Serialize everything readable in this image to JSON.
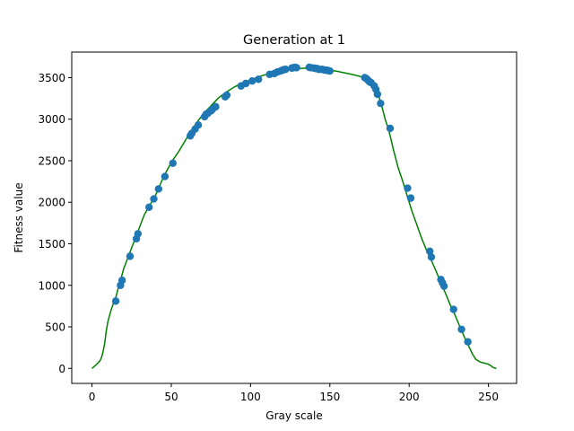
{
  "chart_data": {
    "type": "scatter",
    "title": "Generation at 1",
    "xlabel": "Gray scale",
    "ylabel": "Fitness value",
    "xlim": [
      -12.75,
      267.75
    ],
    "ylim": [
      -181,
      3808
    ],
    "xticks": [
      0,
      50,
      100,
      150,
      200,
      250
    ],
    "yticks": [
      0,
      500,
      1000,
      1500,
      2000,
      2500,
      3000,
      3500
    ],
    "xtick_labels": [
      "0",
      "50",
      "100",
      "150",
      "200",
      "250"
    ],
    "ytick_labels": [
      "0",
      "500",
      "1000",
      "1500",
      "2000",
      "2500",
      "3000",
      "3500"
    ],
    "grid": false,
    "legend": "none",
    "series": [
      {
        "kind": "line",
        "color": "#008000",
        "x": [
          0,
          3,
          5,
          6,
          7,
          8,
          9,
          10,
          12,
          14,
          15,
          17,
          18,
          20,
          22,
          24,
          26,
          28,
          30,
          33,
          36,
          40,
          45,
          50,
          55,
          60,
          65,
          70,
          75,
          80,
          85,
          90,
          95,
          100,
          105,
          110,
          115,
          120,
          125,
          130,
          135,
          140,
          145,
          150,
          155,
          160,
          165,
          170,
          173,
          175,
          177,
          179,
          181,
          183,
          185,
          187,
          190,
          193,
          196,
          199,
          202,
          205,
          208,
          211,
          214,
          217,
          220,
          223,
          226,
          229,
          232,
          235,
          238,
          240,
          242,
          244,
          246,
          248,
          250,
          252,
          253,
          254,
          255
        ],
        "y": [
          0,
          50,
          90,
          130,
          200,
          300,
          450,
          560,
          700,
          810,
          850,
          1000,
          1060,
          1200,
          1300,
          1400,
          1500,
          1600,
          1700,
          1850,
          1950,
          2080,
          2300,
          2480,
          2620,
          2780,
          2930,
          3060,
          3160,
          3260,
          3330,
          3390,
          3440,
          3470,
          3510,
          3540,
          3565,
          3585,
          3600,
          3610,
          3615,
          3610,
          3600,
          3590,
          3575,
          3555,
          3535,
          3510,
          3490,
          3460,
          3420,
          3360,
          3270,
          3140,
          2990,
          2880,
          2640,
          2420,
          2250,
          2060,
          1880,
          1720,
          1560,
          1420,
          1300,
          1170,
          1030,
          900,
          760,
          640,
          500,
          370,
          250,
          170,
          110,
          85,
          70,
          60,
          50,
          25,
          10,
          3,
          0
        ]
      },
      {
        "kind": "points",
        "color": "#1f77b4",
        "x": [
          15,
          18,
          19,
          24,
          28,
          29,
          36,
          39,
          42,
          46,
          51,
          62,
          63,
          65,
          67,
          71,
          72,
          73,
          75,
          76,
          78,
          84,
          85,
          94,
          97,
          101,
          105,
          112,
          115,
          117,
          119,
          120,
          121,
          122,
          126,
          127,
          128,
          129,
          137,
          138,
          140,
          141,
          142,
          143,
          145,
          146,
          147,
          148,
          149,
          150,
          172,
          173,
          174,
          175,
          176,
          178,
          179,
          180,
          182,
          188,
          199,
          201,
          213,
          214,
          220,
          221,
          222,
          228,
          233,
          237
        ],
        "y": [
          810,
          1000,
          1060,
          1350,
          1560,
          1620,
          1940,
          2040,
          2160,
          2310,
          2470,
          2800,
          2830,
          2880,
          2930,
          3030,
          3060,
          3070,
          3100,
          3120,
          3150,
          3270,
          3290,
          3400,
          3430,
          3460,
          3480,
          3540,
          3550,
          3570,
          3580,
          3590,
          3595,
          3600,
          3615,
          3620,
          3625,
          3620,
          3625,
          3620,
          3615,
          3610,
          3610,
          3600,
          3600,
          3595,
          3590,
          3590,
          3585,
          3580,
          3500,
          3490,
          3470,
          3450,
          3440,
          3400,
          3360,
          3300,
          3190,
          2890,
          2170,
          2050,
          1410,
          1340,
          1070,
          1030,
          990,
          710,
          470,
          320
        ]
      }
    ]
  }
}
